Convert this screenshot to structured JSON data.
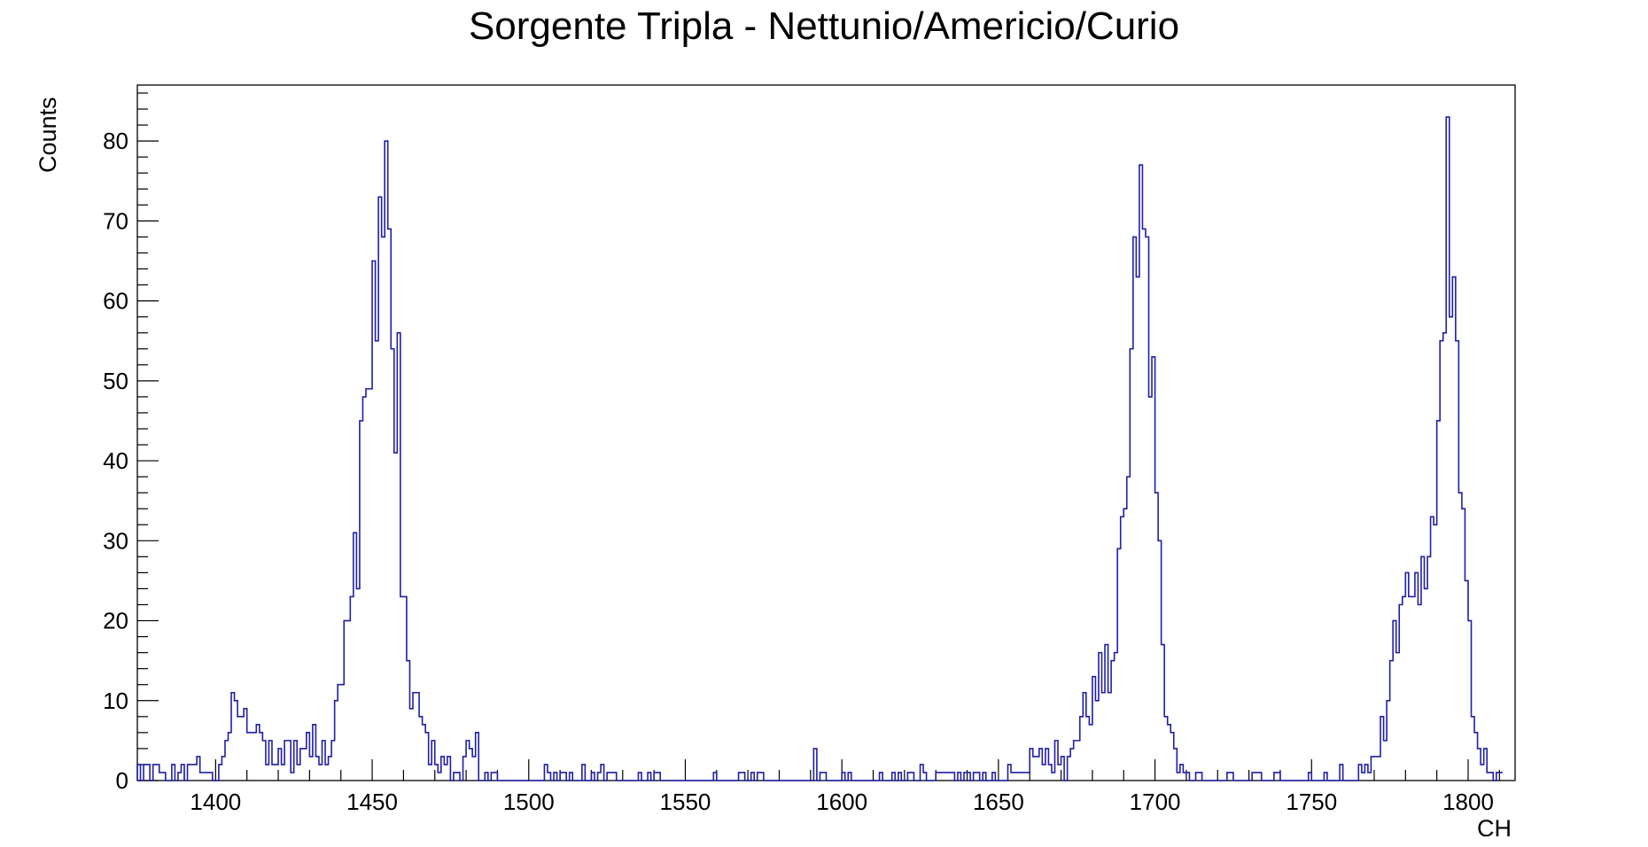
{
  "chart_data": {
    "type": "histogram",
    "title": "Sorgente Tripla - Nettunio/Americio/Curio",
    "xlabel": "CH",
    "ylabel": "Counts",
    "xlim": [
      1375,
      1815
    ],
    "ylim": [
      0,
      87
    ],
    "bin_width": 1,
    "x_start": 1375,
    "x_ticks": [
      1400,
      1450,
      1500,
      1550,
      1600,
      1650,
      1700,
      1750,
      1800
    ],
    "y_ticks": [
      0,
      10,
      20,
      30,
      40,
      50,
      60,
      70,
      80
    ],
    "legend": "none",
    "grid": false,
    "line_color": "#1f1fa8",
    "counts": [
      2,
      0,
      2,
      2,
      0,
      2,
      2,
      1,
      1,
      0,
      0,
      2,
      0,
      1,
      2,
      0,
      2,
      2,
      2,
      3,
      1,
      1,
      1,
      1,
      0,
      0,
      2,
      3,
      5,
      6,
      11,
      10,
      8,
      8,
      9,
      6,
      6,
      6,
      7,
      6,
      5,
      2,
      5,
      2,
      2,
      4,
      2,
      5,
      5,
      1,
      5,
      2,
      4,
      4,
      6,
      3,
      7,
      3,
      2,
      5,
      2,
      3,
      5,
      10,
      12,
      12,
      20,
      20,
      23,
      31,
      24,
      45,
      48,
      49,
      49,
      65,
      55,
      73,
      68,
      80,
      69,
      54,
      41,
      56,
      23,
      23,
      15,
      9,
      11,
      11,
      8,
      7,
      6,
      2,
      5,
      2,
      1,
      3,
      2,
      3,
      0,
      1,
      1,
      0,
      3,
      5,
      4,
      3,
      6,
      0,
      0,
      1,
      0,
      1,
      1,
      0,
      0,
      0,
      0,
      0,
      0,
      0,
      0,
      0,
      0,
      0,
      0,
      0,
      0,
      0,
      2,
      1,
      0,
      1,
      0,
      1,
      1,
      0,
      1,
      0,
      0,
      0,
      2,
      0,
      0,
      1,
      0,
      1,
      2,
      0,
      1,
      1,
      1,
      0,
      0,
      0,
      0,
      0,
      0,
      0,
      1,
      0,
      0,
      1,
      0,
      1,
      1,
      0,
      0,
      0,
      0,
      0,
      0,
      0,
      0,
      0,
      0,
      0,
      0,
      0,
      0,
      0,
      0,
      0,
      1,
      0,
      0,
      0,
      0,
      0,
      0,
      0,
      1,
      1,
      0,
      0,
      1,
      0,
      1,
      1,
      0,
      0,
      0,
      0,
      0,
      0,
      0,
      0,
      0,
      0,
      0,
      0,
      0,
      0,
      0,
      0,
      4,
      0,
      1,
      1,
      0,
      0,
      0,
      0,
      0,
      1,
      0,
      1,
      0,
      0,
      0,
      0,
      0,
      0,
      0,
      0,
      0,
      1,
      0,
      0,
      0,
      1,
      0,
      1,
      0,
      0,
      1,
      1,
      0,
      0,
      2,
      1,
      0,
      0,
      0,
      1,
      1,
      1,
      1,
      1,
      1,
      0,
      1,
      0,
      1,
      1,
      0,
      1,
      1,
      0,
      1,
      0,
      0,
      1,
      0,
      0,
      0,
      0,
      2,
      1,
      1,
      1,
      1,
      1,
      1,
      4,
      3,
      3,
      4,
      2,
      4,
      2,
      1,
      5,
      2,
      3,
      0,
      3,
      4,
      5,
      5,
      8,
      11,
      8,
      7,
      13,
      10,
      16,
      11,
      17,
      11,
      15,
      16,
      29,
      33,
      34,
      38,
      54,
      68,
      63,
      77,
      69,
      68,
      48,
      53,
      36,
      30,
      17,
      8,
      7,
      6,
      4,
      1,
      2,
      1,
      1,
      0,
      0,
      1,
      1,
      0,
      0,
      0,
      0,
      0,
      0,
      0,
      0,
      1,
      1,
      0,
      0,
      0,
      0,
      0,
      0,
      1,
      1,
      1,
      0,
      0,
      0,
      0,
      1,
      1,
      0,
      0,
      0,
      0,
      0,
      0,
      0,
      0,
      0,
      1,
      0,
      0,
      0,
      0,
      1,
      0,
      0,
      0,
      0,
      2,
      0,
      0,
      0,
      0,
      0,
      2,
      1,
      2,
      1,
      3,
      3,
      3,
      8,
      5,
      10,
      15,
      20,
      16,
      22,
      23,
      26,
      23,
      23,
      26,
      22,
      28,
      24,
      28,
      33,
      32,
      45,
      55,
      56,
      83,
      58,
      63,
      55,
      36,
      34,
      25,
      20,
      8,
      6,
      4,
      2,
      4,
      1,
      1,
      0,
      1,
      1
    ]
  }
}
